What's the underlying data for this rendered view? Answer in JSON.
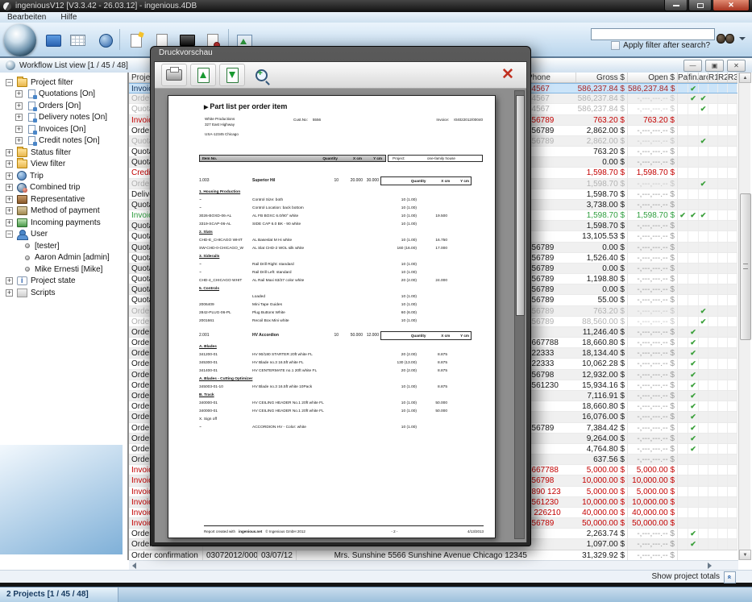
{
  "window": {
    "title": "ingeniousV12 [V3.3.42 - 26.03.12] - ingenious.4DB",
    "menu": [
      "Bearbeiten",
      "Hilfe"
    ]
  },
  "icons": {
    "check": "✔",
    "plus": "+",
    "minus": "−",
    "up": "▲",
    "down": "▼",
    "play": "▶",
    "chevrons": "«"
  },
  "toolbar": {
    "search_value": "",
    "apply_filter_label": "Apply filter after search?"
  },
  "workflow": {
    "header": "Workflow List view [1 / 45 / 48]"
  },
  "sidebar": {
    "items": [
      {
        "level": 0,
        "icon": "folder",
        "expand": "minus",
        "label": "Project filter"
      },
      {
        "level": 1,
        "icon": "doc",
        "expand": "plus",
        "label": "Quotations [On]"
      },
      {
        "level": 1,
        "icon": "doc",
        "expand": "plus",
        "label": "Orders [On]"
      },
      {
        "level": 1,
        "icon": "doc",
        "expand": "plus",
        "label": "Delivery notes  [On]"
      },
      {
        "level": 1,
        "icon": "doc",
        "expand": "plus",
        "label": "Invoices [On]"
      },
      {
        "level": 1,
        "icon": "doc",
        "expand": "plus",
        "label": "Credit notes [On]"
      },
      {
        "level": 0,
        "icon": "folder",
        "expand": "plus",
        "label": "Status filter"
      },
      {
        "level": 0,
        "icon": "folder",
        "expand": "plus",
        "label": "View filter"
      },
      {
        "level": 0,
        "icon": "globe",
        "expand": "plus",
        "label": "Trip"
      },
      {
        "level": 0,
        "icon": "globe2",
        "expand": "plus",
        "label": "Combined trip"
      },
      {
        "level": 0,
        "icon": "case",
        "expand": "plus",
        "label": "Representative"
      },
      {
        "level": 0,
        "icon": "money",
        "expand": "plus",
        "label": "Method of payment"
      },
      {
        "level": 0,
        "icon": "payin",
        "expand": "plus",
        "label": "Incoming payments"
      },
      {
        "level": 0,
        "icon": "user",
        "expand": "minus",
        "label": "User"
      },
      {
        "level": 2,
        "icon": "bullet",
        "expand": "none",
        "label": "[tester]"
      },
      {
        "level": 2,
        "icon": "bullet",
        "expand": "none",
        "label": "Aaron Admin [admin]"
      },
      {
        "level": 2,
        "icon": "bullet",
        "expand": "none",
        "label": "Mike Ernesti [Mike]"
      },
      {
        "level": 0,
        "icon": "info",
        "expand": "plus",
        "label": "Project state"
      },
      {
        "level": 0,
        "icon": "script",
        "expand": "plus",
        "label": "Scripts"
      }
    ]
  },
  "table": {
    "headers": {
      "project_type": "Project type",
      "phone": "Phone",
      "gross": "Gross $",
      "open": "Open $",
      "pai": "Pai",
      "fin": "fin.",
      "arc": "arc",
      "r1": "R1",
      "r2": "R2",
      "r3": "R3"
    },
    "dashes": "-,---,---.-- $",
    "rows": [
      {
        "type": "Invoice",
        "state": "selected",
        "phone": "34567",
        "gross": "586,237.84 $",
        "open": "586,237.84 $",
        "checks": [
          "fin"
        ]
      },
      {
        "type": "Order",
        "state": "muted",
        "phone": "34567",
        "gross": "586,237.84 $",
        "open": "",
        "checks": [
          "fin",
          "arc"
        ]
      },
      {
        "type": "Quotation",
        "state": "muted",
        "phone": "34567",
        "gross": "586,237.84 $",
        "open": "",
        "checks": [
          "arc"
        ]
      },
      {
        "type": "Invoice",
        "state": "red",
        "phone": "456789",
        "gross": "763.20 $",
        "open": "763.20 $",
        "checks": []
      },
      {
        "type": "Order",
        "state": "normal",
        "phone": "456789",
        "gross": "2,862.00 $",
        "open": "",
        "checks": []
      },
      {
        "type": "Quotation",
        "state": "muted",
        "phone": "456789",
        "gross": "2,862.00 $",
        "open": "",
        "checks": [
          "arc"
        ]
      },
      {
        "type": "Quotation",
        "state": "normal",
        "phone": "",
        "gross": "763.20 $",
        "open": "",
        "checks": []
      },
      {
        "type": "Quotation",
        "state": "normal",
        "phone": "",
        "gross": "0.00 $",
        "open": "",
        "checks": []
      },
      {
        "type": "Credit note",
        "state": "red",
        "phone": "",
        "gross": "1,598.70 $",
        "open": "1,598.70 $",
        "checks": []
      },
      {
        "type": "Order",
        "state": "muted",
        "phone": "",
        "gross": "1,598.70 $",
        "open": "",
        "checks": [
          "arc"
        ]
      },
      {
        "type": "Delivery note",
        "state": "normal",
        "phone": "",
        "gross": "1,598.70 $",
        "open": "",
        "checks": []
      },
      {
        "type": "Quotation",
        "state": "normal",
        "phone": "",
        "gross": "3,738.00 $",
        "open": "",
        "checks": []
      },
      {
        "type": "Invoice",
        "state": "green",
        "phone": "",
        "gross": "1,598.70 $",
        "open": "1,598.70 $",
        "checks": [
          "pai",
          "fin",
          "arc"
        ]
      },
      {
        "type": "Quotation",
        "state": "normal",
        "phone": "",
        "gross": "1,598.70 $",
        "open": "",
        "checks": []
      },
      {
        "type": "Quotation",
        "state": "normal",
        "phone": "",
        "gross": "13,105.53 $",
        "open": "",
        "checks": []
      },
      {
        "type": "Quotation",
        "state": "normal",
        "phone": "456789",
        "gross": "0.00 $",
        "open": "",
        "checks": []
      },
      {
        "type": "Quotation",
        "state": "normal",
        "phone": "456789",
        "gross": "1,526.40 $",
        "open": "",
        "checks": []
      },
      {
        "type": "Quotation",
        "state": "normal",
        "phone": "456789",
        "gross": "0.00 $",
        "open": "",
        "checks": []
      },
      {
        "type": "Quotation",
        "state": "normal",
        "phone": "456789",
        "gross": "1,198.80 $",
        "open": "",
        "checks": []
      },
      {
        "type": "Quotation",
        "state": "normal",
        "phone": "456789",
        "gross": "0.00 $",
        "open": "",
        "checks": []
      },
      {
        "type": "Quotation",
        "state": "normal",
        "phone": "456789",
        "gross": "55.00 $",
        "open": "",
        "checks": []
      },
      {
        "type": "Order",
        "state": "muted",
        "phone": "456789",
        "gross": "763.20 $",
        "open": "",
        "checks": [
          "arc"
        ]
      },
      {
        "type": "Order",
        "state": "muted",
        "phone": "456789",
        "gross": "88,560.00 $",
        "open": "",
        "checks": [
          "arc"
        ]
      },
      {
        "type": "Order",
        "state": "normal",
        "phone": "",
        "gross": "11,246.40 $",
        "open": "",
        "checks": [
          "fin"
        ]
      },
      {
        "type": "Order",
        "state": "normal",
        "phone": "5667788",
        "gross": "18,660.80 $",
        "open": "",
        "checks": [
          "fin"
        ]
      },
      {
        "type": "Order",
        "state": "normal",
        "phone": "222333",
        "gross": "18,134.40 $",
        "open": "",
        "checks": [
          "fin"
        ]
      },
      {
        "type": "Order",
        "state": "normal",
        "phone": "222333",
        "gross": "10,062.28 $",
        "open": "",
        "checks": [
          "fin"
        ]
      },
      {
        "type": "Order",
        "state": "normal",
        "phone": "456798",
        "gross": "12,932.00 $",
        "open": "",
        "checks": [
          "fin"
        ]
      },
      {
        "type": "Order",
        "state": "normal",
        "phone": "4561230",
        "gross": "15,934.16 $",
        "open": "",
        "checks": [
          "fin"
        ]
      },
      {
        "type": "Order",
        "state": "normal",
        "phone": "",
        "gross": "7,116.91 $",
        "open": "",
        "checks": [
          "fin"
        ]
      },
      {
        "type": "Order",
        "state": "normal",
        "phone": "",
        "gross": "18,660.80 $",
        "open": "",
        "checks": [
          "fin"
        ]
      },
      {
        "type": "Order",
        "state": "normal",
        "phone": "",
        "gross": "16,076.00 $",
        "open": "",
        "checks": [
          "fin"
        ]
      },
      {
        "type": "Order",
        "state": "normal",
        "phone": "456789",
        "gross": "7,384.42 $",
        "open": "",
        "checks": [
          "fin"
        ]
      },
      {
        "type": "Order",
        "state": "normal",
        "phone": "",
        "gross": "9,264.00 $",
        "open": "",
        "checks": [
          "fin"
        ]
      },
      {
        "type": "Order",
        "state": "normal",
        "phone": "",
        "gross": "4,764.80 $",
        "open": "",
        "checks": [
          "fin"
        ]
      },
      {
        "type": "Order",
        "state": "normal",
        "phone": "",
        "gross": "637.56 $",
        "open": "",
        "checks": []
      },
      {
        "type": "Invoice",
        "state": "red",
        "phone": "5667788",
        "gross": "5,000.00 $",
        "open": "5,000.00 $",
        "checks": []
      },
      {
        "type": "Invoice",
        "state": "red",
        "phone": "456798",
        "gross": "10,000.00 $",
        "open": "10,000.00 $",
        "checks": []
      },
      {
        "type": "Invoice",
        "state": "red",
        "phone": "7890 123",
        "gross": "5,000.00 $",
        "open": "5,000.00 $",
        "checks": []
      },
      {
        "type": "Invoice",
        "state": "red",
        "phone": "4561230",
        "gross": "10,000.00 $",
        "open": "10,000.00 $",
        "checks": []
      },
      {
        "type": "Invoice",
        "state": "red",
        "phone": "1 226210",
        "gross": "40,000.00 $",
        "open": "40,000.00 $",
        "checks": []
      },
      {
        "type": "Invoice",
        "state": "red",
        "phone": "456789",
        "gross": "50,000.00 $",
        "open": "50,000.00 $",
        "checks": []
      },
      {
        "type": "Order",
        "state": "normal",
        "phone": "",
        "gross": "2,263.74 $",
        "open": "",
        "checks": [
          "fin"
        ]
      },
      {
        "type": "Order",
        "state": "normal",
        "phone": "",
        "gross": "1,097.00 $",
        "open": "",
        "checks": [
          "fin"
        ]
      }
    ],
    "bottom_row": {
      "type": "Order confirmation",
      "number": "03072012/00037",
      "date": "03/07/12",
      "customer": "Mrs. Sunshine 5566 Sunshine Avenue Chicago  12345",
      "gross": "31,329.92 $",
      "open": "-,---,---.-- $"
    },
    "show_totals_label": "Show project totals"
  },
  "dialog": {
    "title": "Druckvorschau",
    "document": {
      "title": "Part list per order item",
      "company": [
        "White Productions",
        "327 East Highway",
        "USA-12345 Chicago"
      ],
      "cust_label": "Cust.No:",
      "cust_no": "5556",
      "invoice_label": "Invoice:",
      "invoice_no": "I04022012/00040",
      "bar": {
        "item_no": "Item No.",
        "qty": "Quantity",
        "x": "X cm",
        "y": "Y cm"
      },
      "project_label": "Project:",
      "project_value": "one-family house",
      "box": {
        "qty": "Quantity",
        "x": "X cm",
        "y": "Y cm"
      },
      "lines": [
        {
          "t": "item",
          "no": "1.003",
          "name": "Superior Hil",
          "qty": "10",
          "x": "20.000",
          "y": "30.000"
        },
        {
          "t": "section",
          "text": "1. Housing Production"
        },
        {
          "t": "row",
          "no": "~",
          "desc": "Control Size: both",
          "qty": "10 (1.00)",
          "x": ""
        },
        {
          "t": "row",
          "no": "~",
          "desc": "Control Location: back bottom",
          "qty": "10 (1.00)",
          "x": ""
        },
        {
          "t": "row",
          "no": "3026-BOXD-06-AL",
          "desc": "AL FB BOXC 6.0/90° white",
          "qty": "10 (1.00)",
          "x": "19.500"
        },
        {
          "t": "row",
          "no": "3319-SCAP-06-AL",
          "desc": "SIDE CAP 6.0 BK - 90 white",
          "qty": "10 (1.00)",
          "x": ""
        },
        {
          "t": "section",
          "text": "2. Slats"
        },
        {
          "t": "row",
          "no": "CHD-E_CHICAGO WHIT",
          "desc": "AL Baseslat M Hi white",
          "qty": "10 (1.00)",
          "x": "16.750"
        },
        {
          "t": "row",
          "no": "SW-CHD-0-CHICAGO_W",
          "desc": "AL Slat CHD-2 WOL silk white",
          "qty": "160 (16.00)",
          "x": "17.000"
        },
        {
          "t": "section",
          "text": "3. Siderails"
        },
        {
          "t": "row",
          "no": "~",
          "desc": "Rail Drill Right: standard",
          "qty": "10 (1.00)",
          "x": ""
        },
        {
          "t": "row",
          "no": "~",
          "desc": "Rail Drill Left: standard",
          "qty": "10 (1.00)",
          "x": ""
        },
        {
          "t": "row",
          "no": "CHD-4_CHICAGO WHIT",
          "desc": "AL Rail Maxi 63/27 color white",
          "qty": "20 (2.00)",
          "x": "24.000"
        },
        {
          "t": "section",
          "text": "5. Controls"
        },
        {
          "t": "row",
          "no": "",
          "desc": "Loaded",
          "qty": "10 (1.00)",
          "x": ""
        },
        {
          "t": "row",
          "no": "2006409",
          "desc": "Mini Tape Guides",
          "qty": "10 (1.00)",
          "x": ""
        },
        {
          "t": "row",
          "no": "2842-PLUG-06-PL",
          "desc": "Plug Buttons White",
          "qty": "60 (6.00)",
          "x": ""
        },
        {
          "t": "row",
          "no": "2001661",
          "desc": "Recoil Box Mini white",
          "qty": "10 (1.00)",
          "x": ""
        },
        {
          "t": "item",
          "no": "2.001",
          "name": "HV Accordion",
          "qty": "10",
          "x": "50.000",
          "y": "12.000"
        },
        {
          "t": "section",
          "text": "A. Blades"
        },
        {
          "t": "row",
          "no": "341200-01",
          "desc": "HV 90/180 STARTER 20ft white FL",
          "qty": "20 (2.00)",
          "x": "8.875"
        },
        {
          "t": "row",
          "no": "345300-01",
          "desc": "HV Blade no.3 16.5ft white FL",
          "qty": "130 (13.00)",
          "x": "8.875"
        },
        {
          "t": "row",
          "no": "341400-01",
          "desc": "HV CENTERMATE no.1 20ft white FL",
          "qty": "20 (2.00)",
          "x": "8.875"
        },
        {
          "t": "section",
          "text": "A. Blades - Cutting Optimizer"
        },
        {
          "t": "row",
          "no": "345003-01-10",
          "desc": "HV Blade no.3 16.5ft white 10Pack",
          "qty": "10 (1.00)",
          "x": "8.875"
        },
        {
          "t": "section",
          "text": "B. Track"
        },
        {
          "t": "row",
          "no": "340000-01",
          "desc": "HV CEILING HEADER No.1 20ft white FL",
          "qty": "10 (1.00)",
          "x": "50.000"
        },
        {
          "t": "row",
          "no": "340000-01",
          "desc": "HV CEILING HEADER No.1 20ft white FL",
          "qty": "10 (1.00)",
          "x": "50.000"
        },
        {
          "t": "plain",
          "text": "X. Sign off"
        },
        {
          "t": "row",
          "no": "~",
          "desc": "ACCORDION HV - Color: white",
          "qty": "10 (1.00)",
          "x": ""
        }
      ],
      "footer": {
        "created": "Report created with",
        "brand": "ingenious.net",
        "copyright": "© Ingenious GmbH 2012",
        "page": "- 2 -",
        "date": "4/13/2013"
      }
    }
  },
  "statusbar": {
    "text": "2 Projects [1 / 45 / 48]"
  }
}
